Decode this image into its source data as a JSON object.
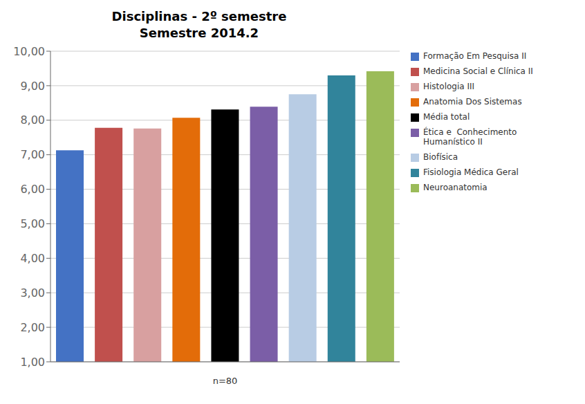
{
  "chart_data": {
    "type": "bar",
    "title": "Disciplinas - 2º semestre\nSemestre 2014.2",
    "categories": [
      "Formação Em Pesquisa II",
      "Medicina Social e Clínica II",
      "Histologia III",
      "Anatomia Dos Sistemas",
      "Média total",
      "Ética e  Conhecimento\nHumanístico II",
      "Biofísica",
      "Fisiologia Médica Geral",
      "Neuroanatomia"
    ],
    "values": [
      7.13,
      7.78,
      7.76,
      8.07,
      8.31,
      8.39,
      8.75,
      9.3,
      9.42
    ],
    "colors": [
      "#4472C4",
      "#C0504D",
      "#D8A0A0",
      "#E36C09",
      "#000000",
      "#7B5EA7",
      "#B8CCE4",
      "#31849B",
      "#9BBB59"
    ],
    "xlabel": "n=80",
    "ylim": [
      1.0,
      10.0
    ],
    "yticks": [
      {
        "value": 1.0,
        "label": "1,00"
      },
      {
        "value": 2.0,
        "label": "2,00"
      },
      {
        "value": 3.0,
        "label": "3,00"
      },
      {
        "value": 4.0,
        "label": "4,00"
      },
      {
        "value": 5.0,
        "label": "5,00"
      },
      {
        "value": 6.0,
        "label": "6,00"
      },
      {
        "value": 7.0,
        "label": "7,00"
      },
      {
        "value": 8.0,
        "label": "8,00"
      },
      {
        "value": 9.0,
        "label": "9,00"
      },
      {
        "value": 10.0,
        "label": "10,00"
      }
    ],
    "grid": true,
    "legend": "right",
    "tick_labels": "y"
  }
}
